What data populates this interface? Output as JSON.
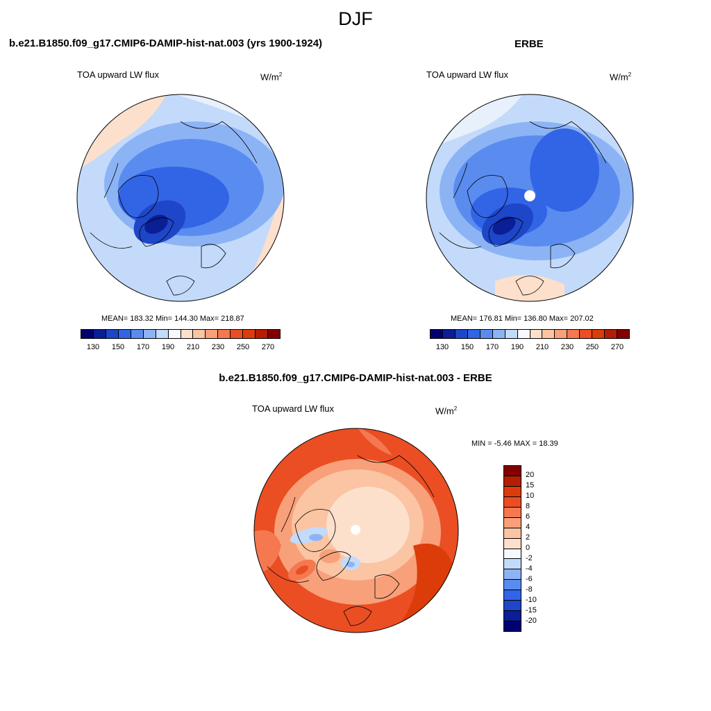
{
  "title": "DJF",
  "panels": [
    {
      "title": "b.e21.B1850.f09_g17.CMIP6-DAMIP-hist-nat.003 (yrs 1900-1924)",
      "left_label": "TOA upward LW flux",
      "units_base": "W/m",
      "units_sup": "2",
      "stats": "MEAN= 183.32  Min= 144.30  Max= 218.87",
      "pole_hole": false
    },
    {
      "title": "ERBE",
      "left_label": "TOA upward LW flux",
      "units_base": "W/m",
      "units_sup": "2",
      "stats": "MEAN= 176.81  Min= 136.80  Max= 207.02",
      "pole_hole": true
    },
    {
      "title": "b.e21.B1850.f09_g17.CMIP6-DAMIP-hist-nat.003 - ERBE",
      "left_label": "TOA upward LW flux",
      "units_base": "W/m",
      "units_sup": "2",
      "stats": "MIN =  -5.46 MAX =  18.39",
      "pole_hole": true
    }
  ],
  "colorbar_abs": {
    "colors": [
      "#00006e",
      "#0a1e96",
      "#1e46c8",
      "#3264e6",
      "#5a8cf0",
      "#8cb4f5",
      "#c3dafa",
      "#f5f8fd",
      "#fde0cc",
      "#fbc4a2",
      "#f8a07a",
      "#f57850",
      "#eb4e23",
      "#dc3c0a",
      "#b41e05",
      "#820000"
    ],
    "tick_labels": [
      "130",
      "150",
      "170",
      "190",
      "210",
      "230",
      "250",
      "270"
    ]
  },
  "colorbar_diff": {
    "colors_top_to_bottom": [
      "#820000",
      "#b41e05",
      "#dc3c0a",
      "#eb4e23",
      "#f57850",
      "#f8a07a",
      "#fbc4a2",
      "#fde0cc",
      "#f5f8fd",
      "#c3dafa",
      "#8cb4f5",
      "#5a8cf0",
      "#3264e6",
      "#1e46c8",
      "#0a1e96",
      "#00006e"
    ],
    "tick_labels_top_to_bottom": [
      "20",
      "15",
      "10",
      "8",
      "6",
      "4",
      "2",
      "0",
      "-2",
      "-4",
      "-6",
      "-8",
      "-10",
      "-15",
      "-20"
    ]
  },
  "chart_data": [
    {
      "type": "heatmap",
      "title": "b.e21.B1850.f09_g17.CMIP6-DAMIP-hist-nat.003 (yrs 1900-1924)",
      "variable": "TOA upward LW flux",
      "units": "W/m2",
      "projection": "north polar stereographic",
      "mean": 183.32,
      "min": 144.3,
      "max": 218.87,
      "contour_levels": [
        130,
        140,
        150,
        160,
        170,
        180,
        190,
        200,
        210,
        220,
        230,
        240,
        250,
        260,
        270
      ]
    },
    {
      "type": "heatmap",
      "title": "ERBE",
      "variable": "TOA upward LW flux",
      "units": "W/m2",
      "projection": "north polar stereographic",
      "mean": 176.81,
      "min": 136.8,
      "max": 207.02,
      "contour_levels": [
        130,
        140,
        150,
        160,
        170,
        180,
        190,
        200,
        210,
        220,
        230,
        240,
        250,
        260,
        270
      ]
    },
    {
      "type": "heatmap",
      "title": "b.e21.B1850.f09_g17.CMIP6-DAMIP-hist-nat.003 - ERBE",
      "variable": "TOA upward LW flux",
      "units": "W/m2",
      "projection": "north polar stereographic",
      "min": -5.46,
      "max": 18.39,
      "contour_levels": [
        -20,
        -15,
        -10,
        -8,
        -6,
        -4,
        -2,
        0,
        2,
        4,
        6,
        8,
        10,
        15,
        20
      ]
    }
  ]
}
